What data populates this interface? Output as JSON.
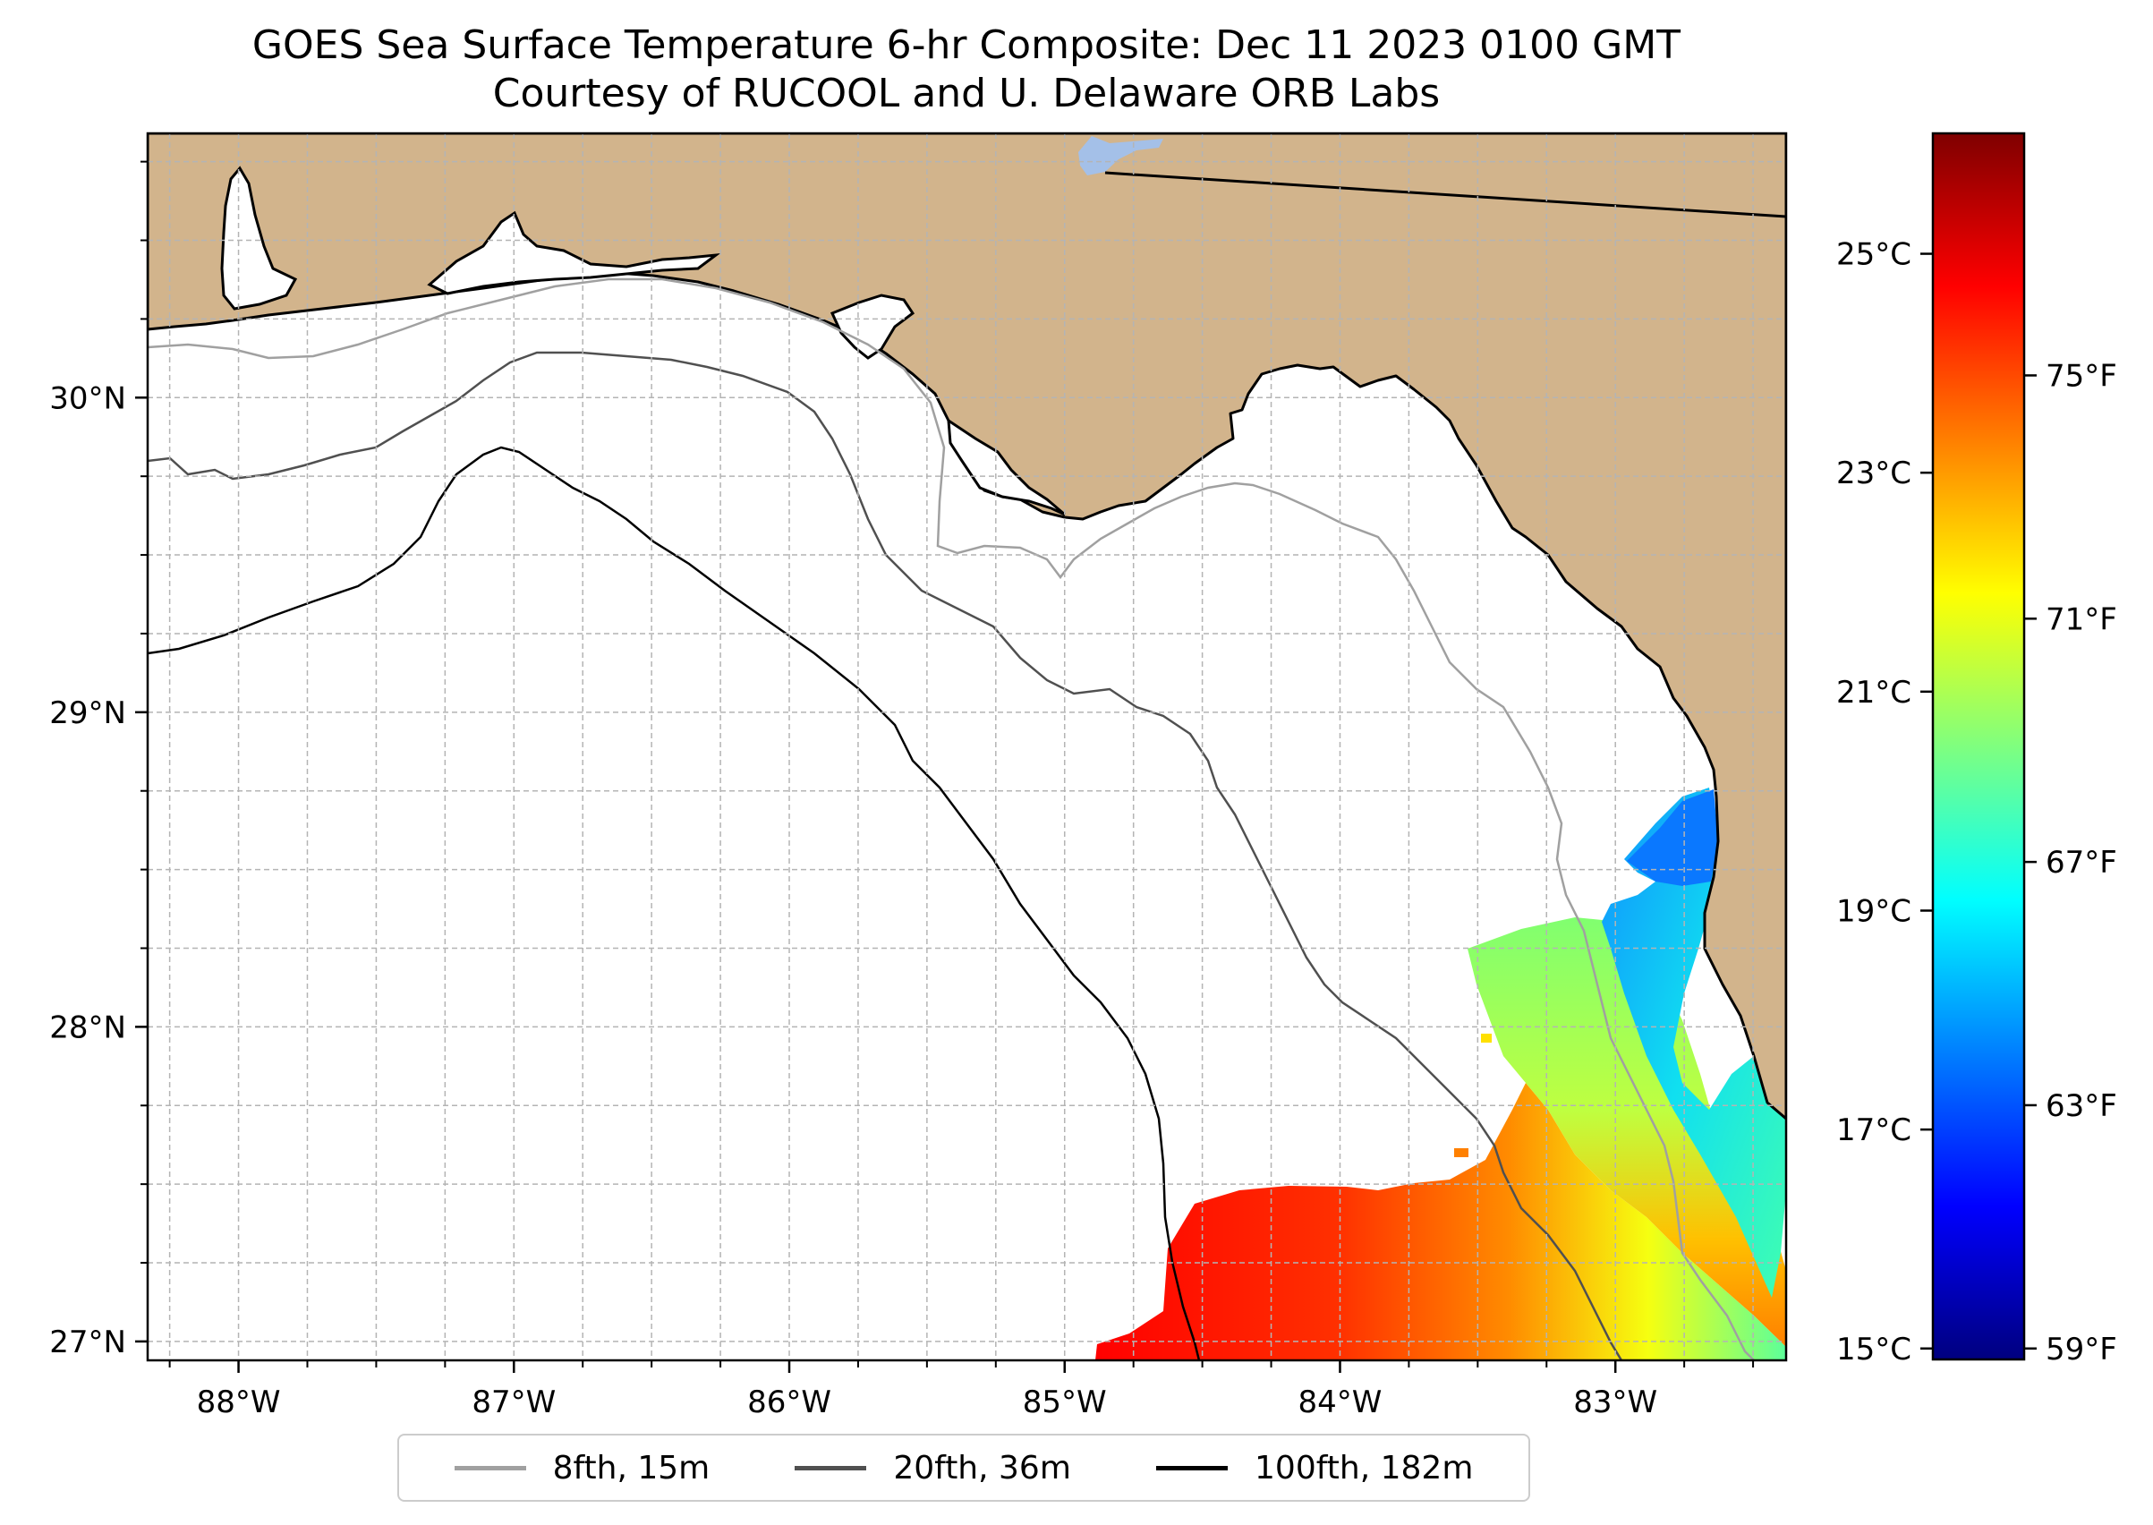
{
  "title": {
    "line1": "GOES Sea Surface Temperature 6-hr Composite: Dec 11 2023 0100 GMT",
    "line2": "Courtesy of RUCOOL and U. Delaware ORB Labs"
  },
  "map": {
    "extent_lon": [
      -88.33,
      -82.38
    ],
    "extent_lat": [
      26.94,
      30.84
    ],
    "land_color": "#d2b48c",
    "ocean_color": "#ffffff",
    "lon_ticks": [
      {
        "value": -88,
        "label": "88°W"
      },
      {
        "value": -87,
        "label": "87°W"
      },
      {
        "value": -86,
        "label": "86°W"
      },
      {
        "value": -85,
        "label": "85°W"
      },
      {
        "value": -84,
        "label": "84°W"
      },
      {
        "value": -83,
        "label": "83°W"
      }
    ],
    "lat_ticks": [
      {
        "value": 27,
        "label": "27°N"
      },
      {
        "value": 28,
        "label": "28°N"
      },
      {
        "value": 29,
        "label": "29°N"
      },
      {
        "value": 30,
        "label": "30°N"
      }
    ]
  },
  "colorbar": {
    "celsius_range": [
      14.9,
      26.1
    ],
    "colors": [
      "#00007f",
      "#0000ff",
      "#007fff",
      "#00ffff",
      "#7fff7f",
      "#ffff00",
      "#ff7f00",
      "#ff0000",
      "#7f0000"
    ],
    "celsius_ticks": [
      {
        "value": 15,
        "label": "15°C"
      },
      {
        "value": 17,
        "label": "17°C"
      },
      {
        "value": 19,
        "label": "19°C"
      },
      {
        "value": 21,
        "label": "21°C"
      },
      {
        "value": 23,
        "label": "23°C"
      },
      {
        "value": 25,
        "label": "25°C"
      }
    ],
    "fahrenheit_ticks": [
      {
        "value": 59,
        "label": "59°F"
      },
      {
        "value": 63,
        "label": "63°F"
      },
      {
        "value": 67,
        "label": "67°F"
      },
      {
        "value": 71,
        "label": "71°F"
      },
      {
        "value": 75,
        "label": "75°F"
      }
    ]
  },
  "legend": {
    "items": [
      {
        "label": "8fth, 15m",
        "color": "#a0a0a0"
      },
      {
        "label": "20fth, 36m",
        "color": "#505050"
      },
      {
        "label": "100fth, 182m",
        "color": "#000000"
      }
    ]
  }
}
